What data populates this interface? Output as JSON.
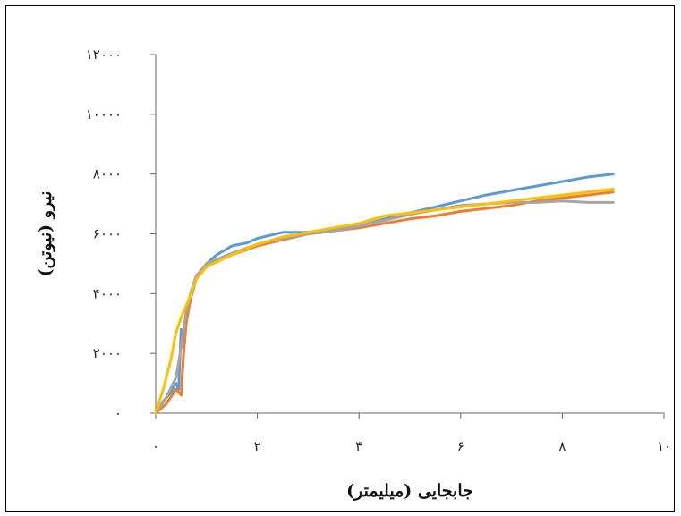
{
  "chart_data": {
    "type": "line",
    "xlabel": "جابجایی (میلیمتر)",
    "ylabel": "نیرو (نیوتن)",
    "xlim": [
      0,
      10
    ],
    "ylim": [
      0,
      12000
    ],
    "xticks": [
      0,
      2,
      4,
      6,
      8,
      10
    ],
    "yticks": [
      0,
      2000,
      4000,
      6000,
      8000,
      10000,
      12000
    ],
    "xtick_labels": [
      "۰",
      "۲",
      "۴",
      "۶",
      "۸",
      "۱۰"
    ],
    "ytick_labels": [
      "۰",
      "۲۰۰۰",
      "۴۰۰۰",
      "۶۰۰۰",
      "۸۰۰۰",
      "۱۰۰۰۰",
      "۱۲۰۰۰"
    ],
    "grid": false,
    "legend": "none",
    "series": [
      {
        "color": "#5b9bd5",
        "x": [
          0,
          0.15,
          0.3,
          0.4,
          0.45,
          0.5,
          0.55,
          0.6,
          0.7,
          0.8,
          1.0,
          1.2,
          1.5,
          1.8,
          2.0,
          2.5,
          3.0,
          3.5,
          4.0,
          4.5,
          5.0,
          5.5,
          6.0,
          6.5,
          7.0,
          7.5,
          8.0,
          8.5,
          9.0
        ],
        "y": [
          0,
          400,
          700,
          1000,
          800,
          2800,
          2600,
          3200,
          3900,
          4500,
          5000,
          5300,
          5600,
          5700,
          5850,
          6050,
          6050,
          6150,
          6250,
          6500,
          6700,
          6900,
          7100,
          7300,
          7450,
          7600,
          7750,
          7900,
          8000
        ]
      },
      {
        "color": "#ed7d31",
        "x": [
          0,
          0.2,
          0.4,
          0.45,
          0.5,
          0.52,
          0.55,
          0.6,
          0.7,
          0.8,
          1.0,
          1.5,
          2.0,
          2.5,
          3.0,
          3.5,
          4.0,
          4.5,
          5.0,
          5.5,
          6.0,
          6.5,
          7.0,
          7.5,
          8.0,
          8.5,
          9.0
        ],
        "y": [
          0,
          300,
          800,
          700,
          600,
          1200,
          2000,
          3000,
          4000,
          4500,
          4900,
          5300,
          5600,
          5800,
          6000,
          6100,
          6200,
          6350,
          6500,
          6600,
          6750,
          6850,
          6950,
          7100,
          7200,
          7300,
          7400
        ]
      },
      {
        "color": "#a5a5a5",
        "x": [
          0,
          0.2,
          0.4,
          0.5,
          0.6,
          0.7,
          0.8,
          1.0,
          1.5,
          2.0,
          2.5,
          3.0,
          3.5,
          4.0,
          4.5,
          5.0,
          5.5,
          6.0,
          6.5,
          7.0,
          7.5,
          8.0,
          8.5,
          9.0
        ],
        "y": [
          0,
          500,
          1200,
          2200,
          3400,
          4100,
          4600,
          5000,
          5350,
          5650,
          5850,
          6000,
          6100,
          6250,
          6450,
          6650,
          6800,
          6950,
          7000,
          7050,
          7050,
          7100,
          7050,
          7050
        ]
      },
      {
        "color": "#ffc000",
        "x": [
          0,
          0.15,
          0.3,
          0.4,
          0.5,
          0.6,
          0.7,
          0.8,
          1.0,
          1.5,
          2.0,
          2.5,
          3.0,
          3.5,
          4.0,
          4.5,
          5.0,
          5.5,
          6.0,
          6.5,
          7.0,
          7.5,
          8.0,
          8.5,
          9.0
        ],
        "y": [
          0,
          800,
          1800,
          2700,
          3200,
          3600,
          4000,
          4500,
          4900,
          5300,
          5650,
          5900,
          6050,
          6200,
          6350,
          6600,
          6700,
          6800,
          6900,
          7000,
          7100,
          7200,
          7300,
          7400,
          7500
        ]
      }
    ]
  }
}
